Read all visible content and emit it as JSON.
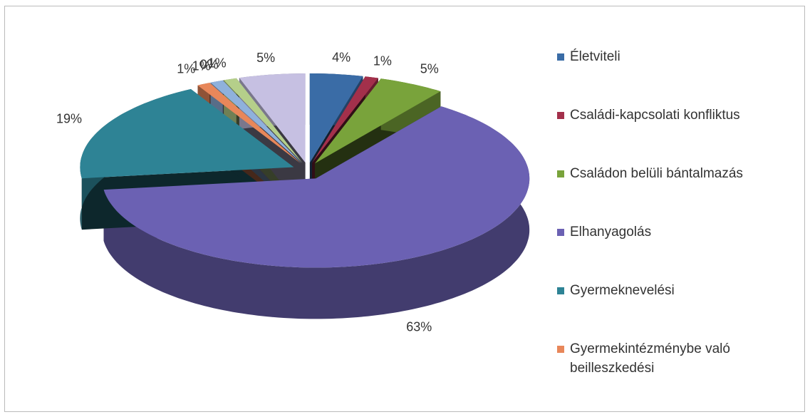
{
  "chart_data": {
    "type": "pie3d",
    "categories": [
      "Életviteli",
      "Családi-kapcsolati konfliktus",
      "Családon belüli bántalmazás",
      "Elhanyagolás",
      "Gyermeknevelési",
      "Gyermekintézménybe való beilleszkedési",
      null,
      null,
      null,
      null
    ],
    "values": [
      4,
      1,
      5,
      63,
      19,
      1,
      1,
      0,
      1,
      5
    ],
    "value_labels": [
      "4%",
      "1%",
      "5%",
      "63%",
      "19%",
      "1%",
      "1%",
      "0%",
      "1%",
      "5%"
    ],
    "colors": [
      "#3a6ca6",
      "#a3304b",
      "#79a33b",
      "#6b61b3",
      "#2e8395",
      "#e8875a",
      "#8fb1dc",
      "#b89fc9",
      "#b5cf8a",
      "#c6c0e2"
    ],
    "legend": "right"
  }
}
